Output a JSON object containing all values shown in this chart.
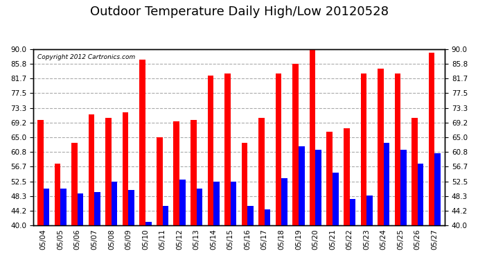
{
  "title": "Outdoor Temperature Daily High/Low 20120528",
  "copyright": "Copyright 2012 Cartronics.com",
  "categories": [
    "05/04",
    "05/05",
    "05/06",
    "05/07",
    "05/08",
    "05/09",
    "05/10",
    "05/11",
    "05/12",
    "05/13",
    "05/14",
    "05/15",
    "05/16",
    "05/17",
    "05/18",
    "05/19",
    "05/20",
    "05/21",
    "05/22",
    "05/23",
    "05/24",
    "05/25",
    "05/26",
    "05/27"
  ],
  "highs": [
    70.0,
    57.5,
    63.5,
    71.5,
    70.5,
    72.0,
    87.0,
    65.0,
    69.5,
    70.0,
    82.5,
    83.0,
    63.5,
    70.5,
    83.0,
    85.8,
    90.0,
    66.5,
    67.5,
    83.0,
    84.5,
    83.0,
    70.5,
    89.0
  ],
  "lows": [
    50.5,
    50.5,
    49.0,
    49.5,
    52.5,
    50.0,
    41.0,
    45.5,
    53.0,
    50.5,
    52.5,
    52.5,
    45.5,
    44.5,
    53.5,
    62.5,
    61.5,
    55.0,
    47.5,
    48.5,
    63.5,
    61.5,
    57.5,
    60.5
  ],
  "high_color": "#ff0000",
  "low_color": "#0000ff",
  "ylim": [
    40.0,
    90.0
  ],
  "yticks": [
    40.0,
    44.2,
    48.3,
    52.5,
    56.7,
    60.8,
    65.0,
    69.2,
    73.3,
    77.5,
    81.7,
    85.8,
    90.0
  ],
  "background_color": "#ffffff",
  "grid_color": "#aaaaaa",
  "title_fontsize": 13,
  "bar_width": 0.35
}
